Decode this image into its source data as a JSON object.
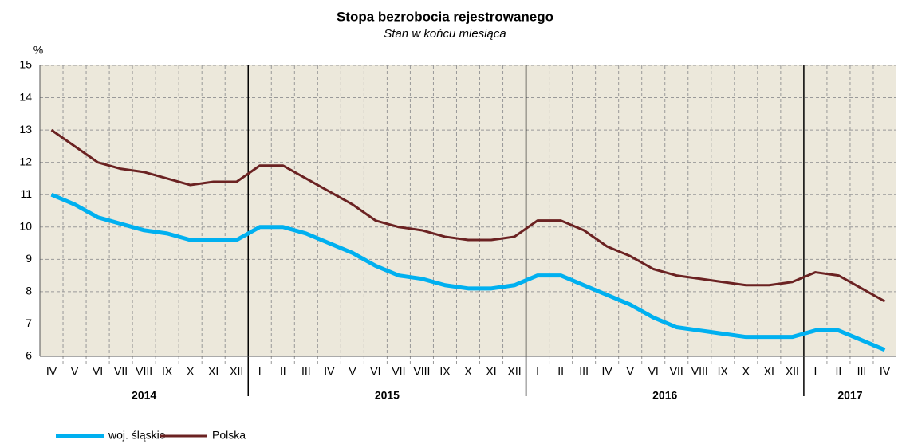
{
  "chart_data": {
    "type": "line",
    "title": "Stopa bezrobocia rejestrowanego",
    "subtitle": "Stan w końcu miesiąca",
    "y_label": "%",
    "categories": [
      "IV",
      "V",
      "VI",
      "VII",
      "VIII",
      "IX",
      "X",
      "XI",
      "XII",
      "I",
      "II",
      "III",
      "IV",
      "V",
      "VI",
      "VII",
      "VIII",
      "IX",
      "X",
      "XI",
      "XII",
      "I",
      "II",
      "III",
      "IV",
      "V",
      "VI",
      "VII",
      "VIII",
      "IX",
      "X",
      "XI",
      "XII",
      "I",
      "II",
      "III",
      "IV"
    ],
    "years": [
      "2014",
      "2015",
      "2016",
      "2017"
    ],
    "series": [
      {
        "name": "woj. śląskie",
        "color": "#00b0f0",
        "values": [
          11.0,
          10.7,
          10.3,
          10.1,
          9.9,
          9.8,
          9.6,
          9.6,
          9.6,
          10.0,
          10.0,
          9.8,
          9.5,
          9.2,
          8.8,
          8.5,
          8.4,
          8.2,
          8.1,
          8.1,
          8.2,
          8.5,
          8.5,
          8.2,
          7.9,
          7.6,
          7.2,
          6.9,
          6.8,
          6.7,
          6.6,
          6.6,
          6.6,
          6.8,
          6.8,
          6.5,
          6.2
        ]
      },
      {
        "name": "Polska",
        "color": "#6b2222",
        "values": [
          13.0,
          12.5,
          12.0,
          11.8,
          11.7,
          11.5,
          11.3,
          11.4,
          11.4,
          11.9,
          11.9,
          11.5,
          11.1,
          10.7,
          10.2,
          10.0,
          9.9,
          9.7,
          9.6,
          9.6,
          9.7,
          10.2,
          10.2,
          9.9,
          9.4,
          9.1,
          8.7,
          8.5,
          8.4,
          8.3,
          8.2,
          8.2,
          8.3,
          8.6,
          8.5,
          8.1,
          7.7
        ]
      }
    ],
    "ylim": [
      6,
      15
    ],
    "yticks": [
      6,
      7,
      8,
      9,
      10,
      11,
      12,
      13,
      14,
      15
    ],
    "grid": true,
    "legend": "bottom-left"
  }
}
